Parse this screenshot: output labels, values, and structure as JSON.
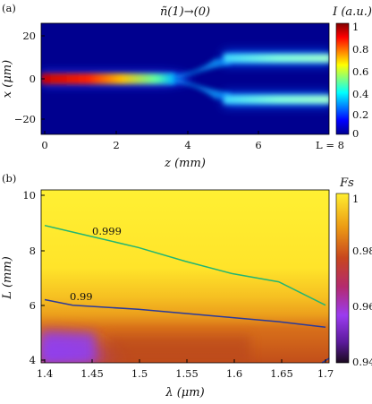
{
  "figure": {
    "panel_a_label": "(a)",
    "panel_b_label": "(b)"
  },
  "chart_data": [
    {
      "type": "heatmap",
      "panel": "(a)",
      "title": "ñ(1)→(0)",
      "xlabel": "z (mm)",
      "ylabel": "x (μm)",
      "xlim": [
        0,
        8
      ],
      "ylim": [
        -28,
        28
      ],
      "x_ticks": [
        "0",
        "2",
        "4",
        "6",
        "L = 8"
      ],
      "y_ticks": [
        "20",
        "0",
        "−20"
      ],
      "colorbar": {
        "label": "I (a.u.)",
        "range": [
          0,
          1
        ],
        "ticks": [
          "1",
          "0.8",
          "0.6",
          "0.4",
          "0.2",
          "0"
        ],
        "colormap": "jet"
      },
      "description_values": {
        "input_beam_center_x": 0,
        "split_start_z": 3.2,
        "split_end_z": 5.2,
        "output_beam_centers_x": [
          10,
          -10
        ]
      }
    },
    {
      "type": "heatmap",
      "panel": "(b)",
      "xlabel": "λ (μm)",
      "ylabel": "L (mm)",
      "xlim": [
        1.4,
        1.7
      ],
      "ylim": [
        4,
        10
      ],
      "x_ticks": [
        "1.4",
        "1.45",
        "1.5",
        "1.55",
        "1.6",
        "1.65",
        "1.7"
      ],
      "y_ticks": [
        "10",
        "8",
        "6",
        "4"
      ],
      "colorbar": {
        "label": "Fs",
        "range": [
          0.94,
          1
        ],
        "ticks": [
          "1",
          "0.98",
          "0.96",
          "0.94"
        ]
      },
      "contours": [
        {
          "level": "0.999",
          "color": "#22b573",
          "x": [
            1.4,
            1.45,
            1.5,
            1.55,
            1.6,
            1.65,
            1.7
          ],
          "y": [
            8.9,
            8.5,
            8.1,
            7.6,
            7.15,
            6.85,
            6.0
          ]
        },
        {
          "level": "0.99",
          "color": "#2a3a9a",
          "x": [
            1.4,
            1.43,
            1.5,
            1.55,
            1.6,
            1.65,
            1.7
          ],
          "y": [
            6.2,
            6.0,
            5.85,
            5.7,
            5.55,
            5.4,
            5.2
          ]
        }
      ]
    }
  ]
}
